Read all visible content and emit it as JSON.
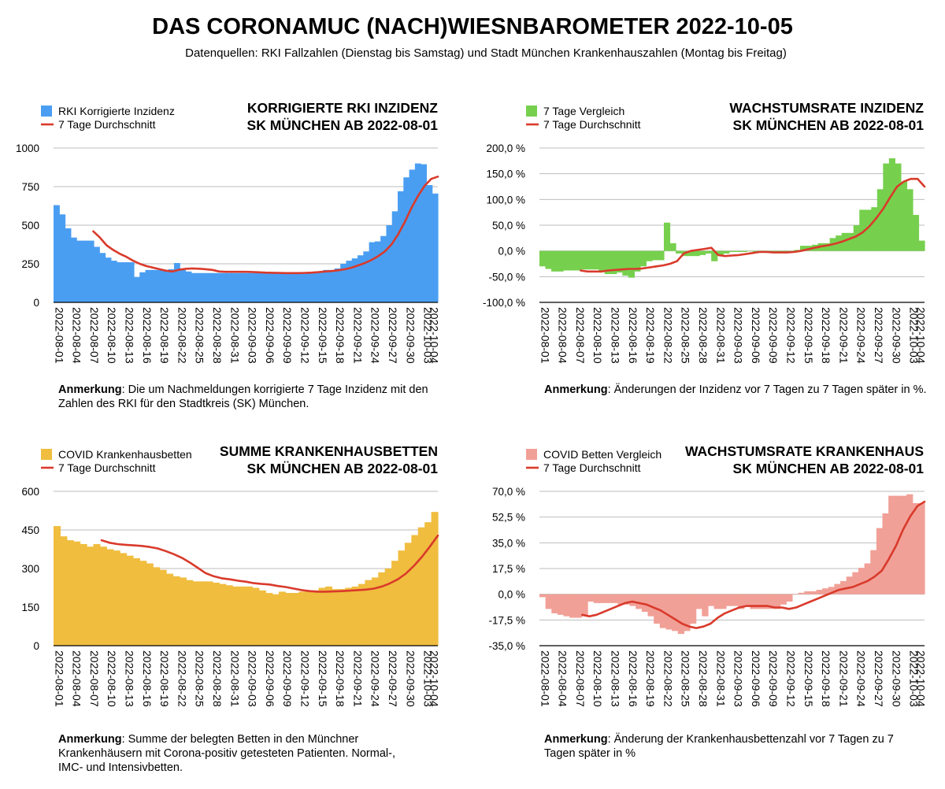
{
  "title": "DAS CORONAMUC (NACH)WIESNBAROMETER 2022-10-05",
  "subtitle": "Datenquellen: RKI Fallzahlen (Dienstag bis Samstag) und Stadt München Krankenhauszahlen (Montag bis Freitag)",
  "colors": {
    "line": "#d93a2b",
    "grid": "#bdbdbd",
    "axis": "#000000"
  },
  "chart_data": [
    {
      "type": "bar",
      "title": "KORRIGIERTE RKI INZIDENZ",
      "subtitle": "SK MÜNCHEN AB 2022-08-01",
      "bar_color": "#4a9ef2",
      "legend": [
        "RKI Korrigierte Inzidenz",
        "7 Tage Durchschnitt"
      ],
      "ylim": [
        0,
        1000
      ],
      "yticks": [
        0,
        250,
        500,
        750,
        1000
      ],
      "ytick_labels": [
        "0",
        "250",
        "500",
        "750",
        "1000"
      ],
      "x_labels": [
        "2022-08-01",
        "2022-08-04",
        "2022-08-07",
        "2022-08-10",
        "2022-08-13",
        "2022-08-16",
        "2022-08-19",
        "2022-08-22",
        "2022-08-25",
        "2022-08-28",
        "2022-08-31",
        "2022-09-03",
        "2022-09-06",
        "2022-09-09",
        "2022-09-12",
        "2022-09-15",
        "2022-09-18",
        "2022-09-21",
        "2022-09-24",
        "2022-09-27",
        "2022-09-30",
        "2022-10-03",
        "2022-10-04"
      ],
      "values": [
        630,
        570,
        480,
        420,
        400,
        400,
        400,
        360,
        320,
        290,
        270,
        260,
        260,
        260,
        165,
        195,
        210,
        210,
        210,
        210,
        215,
        255,
        210,
        200,
        190,
        190,
        190,
        190,
        190,
        190,
        190,
        190,
        190,
        190,
        190,
        190,
        190,
        190,
        190,
        190,
        190,
        190,
        190,
        190,
        190,
        190,
        200,
        210,
        210,
        220,
        250,
        270,
        285,
        305,
        330,
        390,
        395,
        430,
        500,
        590,
        720,
        810,
        860,
        900,
        895,
        760,
        705
      ],
      "avg": [
        null,
        null,
        null,
        null,
        null,
        null,
        460,
        420,
        370,
        340,
        315,
        295,
        270,
        250,
        235,
        225,
        215,
        205,
        200,
        212,
        218,
        220,
        218,
        215,
        210,
        200,
        198,
        198,
        198,
        198,
        197,
        195,
        193,
        192,
        191,
        190,
        190,
        190,
        191,
        193,
        196,
        200,
        203,
        208,
        215,
        225,
        240,
        255,
        275,
        300,
        330,
        375,
        440,
        520,
        610,
        690,
        755,
        800,
        815
      ],
      "note_bold": "Anmerkung",
      "note_text": ": Die um Nachmeldungen korrigierte 7 Tage Inzidenz mit den Zahlen des RKI für den Stadtkreis (SK) München."
    },
    {
      "type": "bar",
      "title": "WACHSTUMSRATE INZIDENZ",
      "subtitle": "SK MÜNCHEN AB 2022-08-01",
      "bar_color": "#76d04d",
      "legend": [
        "7 Tage Vergleich",
        "7 Tage Durchschnitt"
      ],
      "ylim": [
        -100,
        200
      ],
      "yticks": [
        -100,
        -50,
        0,
        50,
        100,
        150,
        200
      ],
      "ytick_labels": [
        "-100,0 %",
        "-50,0 %",
        "0,0 %",
        "50,0 %",
        "100,0 %",
        "150,0 %",
        "200,0 %"
      ],
      "x_labels": [
        "2022-08-01",
        "2022-08-04",
        "2022-08-07",
        "2022-08-10",
        "2022-08-13",
        "2022-08-16",
        "2022-08-19",
        "2022-08-22",
        "2022-08-25",
        "2022-08-28",
        "2022-08-31",
        "2022-09-03",
        "2022-09-06",
        "2022-09-09",
        "2022-09-12",
        "2022-09-15",
        "2022-09-18",
        "2022-09-21",
        "2022-09-24",
        "2022-09-27",
        "2022-09-30",
        "2022-10-03",
        "2022-10-04"
      ],
      "values": [
        -30,
        -35,
        -40,
        -40,
        -38,
        -38,
        -38,
        -36,
        -36,
        -36,
        -40,
        -45,
        -45,
        -42,
        -48,
        -52,
        -40,
        -30,
        -20,
        -18,
        -18,
        55,
        15,
        -5,
        -10,
        -10,
        -10,
        -8,
        -5,
        -20,
        -10,
        -5,
        -2,
        -2,
        -2,
        0,
        -2,
        -2,
        -2,
        -2,
        -2,
        -2,
        -2,
        2,
        10,
        10,
        12,
        15,
        15,
        25,
        30,
        35,
        35,
        50,
        80,
        80,
        85,
        120,
        170,
        180,
        170,
        135,
        120,
        70,
        20
      ],
      "avg": [
        null,
        null,
        null,
        null,
        null,
        null,
        -38,
        -40,
        -40,
        -40,
        -38,
        -37,
        -36,
        -35,
        -35,
        -34,
        -32,
        -30,
        -28,
        -25,
        -20,
        -5,
        0,
        2,
        4,
        6,
        -8,
        -10,
        -9,
        -8,
        -6,
        -4,
        -2,
        -2,
        -3,
        -3,
        -3,
        -2,
        0,
        3,
        6,
        9,
        11,
        14,
        18,
        23,
        28,
        36,
        48,
        64,
        82,
        104,
        125,
        135,
        140,
        140,
        125
      ],
      "note_bold": "Anmerkung",
      "note_text": ": Änderungen der Inzidenz vor 7 Tagen zu 7 Tagen später in %."
    },
    {
      "type": "bar",
      "title": "SUMME KRANKENHAUSBETTEN",
      "subtitle": "SK MÜNCHEN AB 2022-08-01",
      "bar_color": "#f0bd3f",
      "legend": [
        "COVID Krankenhausbetten",
        "7 Tage Durchschnitt"
      ],
      "ylim": [
        0,
        600
      ],
      "yticks": [
        0,
        150,
        300,
        450,
        600
      ],
      "ytick_labels": [
        "0",
        "150",
        "300",
        "450",
        "600"
      ],
      "x_labels": [
        "2022-08-01",
        "2022-08-04",
        "2022-08-07",
        "2022-08-10",
        "2022-08-13",
        "2022-08-16",
        "2022-08-19",
        "2022-08-22",
        "2022-08-25",
        "2022-08-28",
        "2022-08-31",
        "2022-09-03",
        "2022-09-06",
        "2022-09-09",
        "2022-09-12",
        "2022-09-15",
        "2022-09-18",
        "2022-09-21",
        "2022-09-24",
        "2022-09-27",
        "2022-09-30",
        "2022-10-03",
        "2022-10-04"
      ],
      "values": [
        465,
        425,
        410,
        405,
        395,
        385,
        395,
        385,
        375,
        370,
        360,
        350,
        340,
        330,
        320,
        305,
        295,
        280,
        270,
        265,
        255,
        250,
        250,
        250,
        245,
        240,
        235,
        230,
        230,
        230,
        225,
        215,
        205,
        200,
        210,
        205,
        205,
        210,
        215,
        215,
        225,
        230,
        220,
        220,
        225,
        230,
        240,
        255,
        265,
        285,
        300,
        330,
        370,
        400,
        430,
        460,
        480,
        520
      ],
      "avg": [
        null,
        null,
        null,
        null,
        null,
        null,
        410,
        400,
        395,
        392,
        390,
        388,
        384,
        378,
        368,
        356,
        342,
        324,
        303,
        282,
        270,
        262,
        258,
        253,
        249,
        243,
        240,
        238,
        232,
        228,
        222,
        216,
        212,
        210,
        210,
        211,
        212,
        214,
        216,
        218,
        222,
        230,
        242,
        258,
        280,
        310,
        345,
        385,
        428
      ],
      "note_bold": "Anmerkung",
      "note_text": ": Summe der belegten Betten in den Münchner Krankenhäusern mit Corona-positiv getesteten Patienten. Normal-, IMC- und Intensivbetten."
    },
    {
      "type": "bar",
      "title": "WACHSTUMSRATE KRANKENHAUS",
      "subtitle": "SK MÜNCHEN AB 2022-08-01",
      "bar_color": "#f1a097",
      "legend": [
        "COVID Betten Vergleich",
        "7 Tage Durchschnitt"
      ],
      "ylim": [
        -35,
        70
      ],
      "yticks": [
        -35,
        -17.5,
        0,
        17.5,
        35,
        52.5,
        70
      ],
      "ytick_labels": [
        "-35,0 %",
        "-17,5 %",
        "0,0 %",
        "17,5 %",
        "35,0 %",
        "52,5 %",
        "70,0 %"
      ],
      "x_labels": [
        "2022-08-01",
        "2022-08-04",
        "2022-08-07",
        "2022-08-10",
        "2022-08-13",
        "2022-08-16",
        "2022-08-19",
        "2022-08-22",
        "2022-08-25",
        "2022-08-28",
        "2022-08-31",
        "2022-09-03",
        "2022-09-06",
        "2022-09-09",
        "2022-09-12",
        "2022-09-15",
        "2022-09-18",
        "2022-09-21",
        "2022-09-24",
        "2022-09-27",
        "2022-09-30",
        "2022-10-03",
        "2022-10-04"
      ],
      "values": [
        -2,
        -10,
        -13,
        -14,
        -15,
        -16,
        -16,
        -15,
        -5,
        -6,
        -6,
        -6,
        -6,
        -7,
        -7,
        -8,
        -10,
        -12,
        -15,
        -20,
        -23,
        -24,
        -25,
        -27,
        -25,
        -20,
        -10,
        -15,
        -8,
        -10,
        -10,
        -8,
        -8,
        -10,
        -8,
        -10,
        -10,
        -10,
        -10,
        -10,
        -7,
        -5,
        0,
        1,
        2,
        2,
        3,
        4,
        5,
        7,
        9,
        12,
        15,
        18,
        21,
        30,
        45,
        55,
        67,
        67,
        67,
        68,
        62,
        62
      ],
      "avg": [
        null,
        null,
        null,
        null,
        null,
        null,
        -14,
        -15,
        -14,
        -12,
        -10,
        -8,
        -6,
        -5,
        -6,
        -7,
        -9,
        -11,
        -14,
        -17,
        -20,
        -22,
        -23,
        -22,
        -20,
        -16,
        -13,
        -11,
        -9,
        -8,
        -8,
        -8,
        -8,
        -9,
        -9,
        -10,
        -9,
        -7,
        -5,
        -3,
        -1,
        1,
        3,
        4,
        5,
        7,
        9,
        12,
        16,
        24,
        33,
        44,
        53,
        60,
        63
      ],
      "note_bold": "Anmerkung",
      "note_text": ": Änderung der Krankenhausbettenzahl vor 7 Tagen zu 7 Tagen später in %"
    }
  ]
}
